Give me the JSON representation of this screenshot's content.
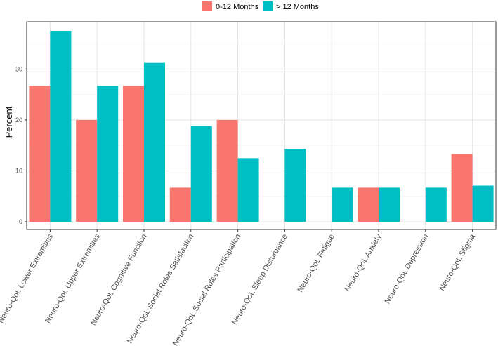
{
  "chart_data": {
    "type": "bar",
    "title": "",
    "xlabel": "",
    "ylabel": "Percent",
    "ylim": [
      0,
      38.5
    ],
    "yticks": [
      0,
      10,
      20,
      30
    ],
    "grid": true,
    "legend_position": "top",
    "categories": [
      "Neuro-QoL Lower Extremities",
      "Neuro-QoL Upper Extremities",
      "Neuro-QoL Cognitive Function",
      "Neuro-QoL Social Roles Satisfaction",
      "Neuro-QoL Social Roles Participation",
      "Neuro-QoL Sleep Disturbance",
      "Neuro-QoL Fatigue",
      "Neuro-QoL Anxiety",
      "Neuro-QoL Depression",
      "Neuro-QoL Stigma"
    ],
    "series": [
      {
        "name": "0-12 Months",
        "color": "#F8766D",
        "values": [
          26.7,
          20.0,
          26.7,
          6.7,
          20.0,
          0,
          0,
          6.7,
          0,
          13.3
        ]
      },
      {
        "name": "> 12 Months",
        "color": "#00BFC4",
        "values": [
          37.5,
          26.7,
          31.2,
          18.8,
          12.5,
          14.3,
          6.7,
          6.7,
          6.7,
          7.1
        ]
      }
    ]
  }
}
